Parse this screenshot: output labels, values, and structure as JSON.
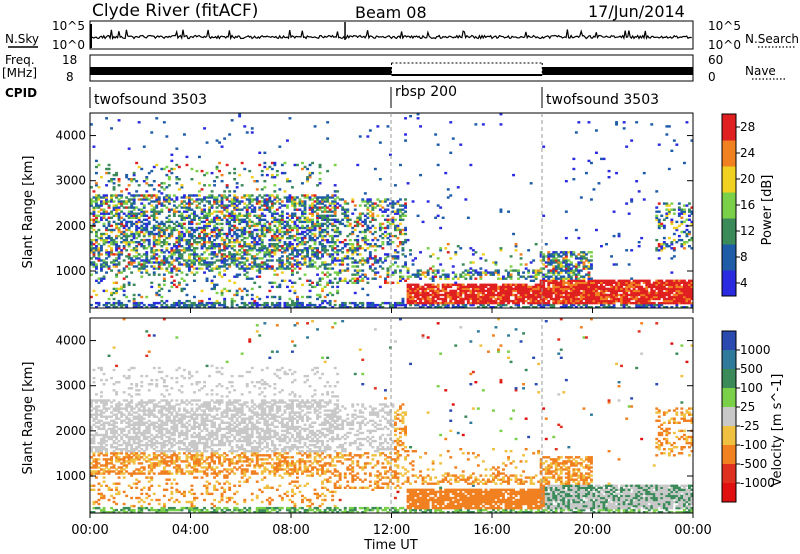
{
  "header": {
    "station": "Clyde River (fitACF)",
    "beam": "Beam 08",
    "date": "17/Jun/2014"
  },
  "noise_panel": {
    "left_label": "N.Sky",
    "right_label": "N.Search",
    "left_ticks": [
      "10^5",
      "10^0"
    ],
    "right_ticks": [
      "10^5",
      "10^0"
    ]
  },
  "freq_panel": {
    "left_label_line1": "Freq.",
    "left_label_line2": "[MHz]",
    "right_label": "Nave",
    "left_ticks": [
      "18",
      "8"
    ],
    "right_ticks": [
      "60",
      "0"
    ]
  },
  "cpid_panel": {
    "label": "CPID",
    "segments": [
      {
        "name": "twofsound 3503",
        "start_hour": 0
      },
      {
        "name": "rbsp 200",
        "start_hour": 12
      },
      {
        "name": "twofsound 3503",
        "start_hour": 18
      }
    ]
  },
  "chart_data": [
    {
      "type": "heatmap",
      "title": "Power",
      "ylabel": "Slant Range [km]",
      "y_ticks": [
        "1000",
        "2000",
        "3000",
        "4000"
      ],
      "ylim": [
        180,
        4500
      ],
      "colorbar_label": "Power [dB]",
      "colorbar_ticks": [
        "4",
        "8",
        "12",
        "16",
        "20",
        "24",
        "28"
      ],
      "colorbar_colors": [
        "#2a2ae0",
        "#1e5ca8",
        "#3a8a5a",
        "#7bd04a",
        "#f0d020",
        "#f08020",
        "#e02020"
      ]
    },
    {
      "type": "heatmap",
      "title": "Velocity",
      "ylabel": "Slant Range [km]",
      "y_ticks": [
        "1000",
        "2000",
        "3000",
        "4000"
      ],
      "ylim": [
        180,
        4500
      ],
      "colorbar_label": "Velocity [m s^-1]",
      "colorbar_ticks": [
        "1000",
        "500",
        "100",
        "25",
        "-25",
        "-100",
        "-500",
        "-1000"
      ],
      "colorbar_colors": [
        "#2a4ab0",
        "#2f7a9a",
        "#3a8a5a",
        "#7bd04a",
        "#c8c8c8",
        "#f0c040",
        "#f08020",
        "#e03020",
        "#e01010"
      ]
    }
  ],
  "x_axis": {
    "xlabel": "Time UT",
    "ticks": [
      "00:00",
      "04:00",
      "08:00",
      "12:00",
      "16:00",
      "20:00",
      "00:00"
    ],
    "range_hours": [
      0,
      24
    ]
  }
}
